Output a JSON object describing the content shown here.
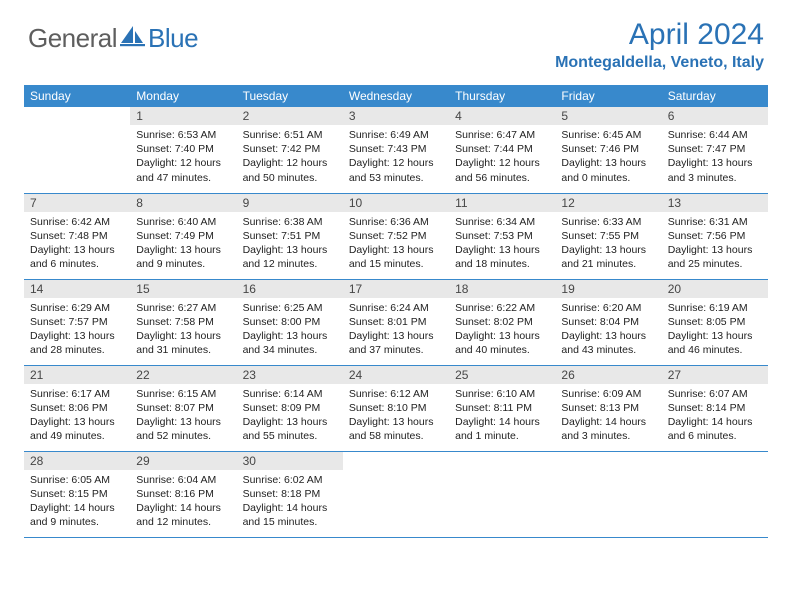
{
  "header": {
    "logo_general": "General",
    "logo_blue": "Blue",
    "month_title": "April 2024",
    "location": "Montegaldella, Veneto, Italy"
  },
  "colors": {
    "header_blue": "#3889cc",
    "text_blue": "#2a72b5",
    "logo_gray": "#5e5e5e",
    "daynum_bg": "#e8e8e8",
    "daynum_text": "#464646",
    "body_text": "#222222"
  },
  "day_headers": [
    "Sunday",
    "Monday",
    "Tuesday",
    "Wednesday",
    "Thursday",
    "Friday",
    "Saturday"
  ],
  "weeks": [
    [
      null,
      {
        "num": "1",
        "sunrise": "Sunrise: 6:53 AM",
        "sunset": "Sunset: 7:40 PM",
        "daylight": "Daylight: 12 hours and 47 minutes."
      },
      {
        "num": "2",
        "sunrise": "Sunrise: 6:51 AM",
        "sunset": "Sunset: 7:42 PM",
        "daylight": "Daylight: 12 hours and 50 minutes."
      },
      {
        "num": "3",
        "sunrise": "Sunrise: 6:49 AM",
        "sunset": "Sunset: 7:43 PM",
        "daylight": "Daylight: 12 hours and 53 minutes."
      },
      {
        "num": "4",
        "sunrise": "Sunrise: 6:47 AM",
        "sunset": "Sunset: 7:44 PM",
        "daylight": "Daylight: 12 hours and 56 minutes."
      },
      {
        "num": "5",
        "sunrise": "Sunrise: 6:45 AM",
        "sunset": "Sunset: 7:46 PM",
        "daylight": "Daylight: 13 hours and 0 minutes."
      },
      {
        "num": "6",
        "sunrise": "Sunrise: 6:44 AM",
        "sunset": "Sunset: 7:47 PM",
        "daylight": "Daylight: 13 hours and 3 minutes."
      }
    ],
    [
      {
        "num": "7",
        "sunrise": "Sunrise: 6:42 AM",
        "sunset": "Sunset: 7:48 PM",
        "daylight": "Daylight: 13 hours and 6 minutes."
      },
      {
        "num": "8",
        "sunrise": "Sunrise: 6:40 AM",
        "sunset": "Sunset: 7:49 PM",
        "daylight": "Daylight: 13 hours and 9 minutes."
      },
      {
        "num": "9",
        "sunrise": "Sunrise: 6:38 AM",
        "sunset": "Sunset: 7:51 PM",
        "daylight": "Daylight: 13 hours and 12 minutes."
      },
      {
        "num": "10",
        "sunrise": "Sunrise: 6:36 AM",
        "sunset": "Sunset: 7:52 PM",
        "daylight": "Daylight: 13 hours and 15 minutes."
      },
      {
        "num": "11",
        "sunrise": "Sunrise: 6:34 AM",
        "sunset": "Sunset: 7:53 PM",
        "daylight": "Daylight: 13 hours and 18 minutes."
      },
      {
        "num": "12",
        "sunrise": "Sunrise: 6:33 AM",
        "sunset": "Sunset: 7:55 PM",
        "daylight": "Daylight: 13 hours and 21 minutes."
      },
      {
        "num": "13",
        "sunrise": "Sunrise: 6:31 AM",
        "sunset": "Sunset: 7:56 PM",
        "daylight": "Daylight: 13 hours and 25 minutes."
      }
    ],
    [
      {
        "num": "14",
        "sunrise": "Sunrise: 6:29 AM",
        "sunset": "Sunset: 7:57 PM",
        "daylight": "Daylight: 13 hours and 28 minutes."
      },
      {
        "num": "15",
        "sunrise": "Sunrise: 6:27 AM",
        "sunset": "Sunset: 7:58 PM",
        "daylight": "Daylight: 13 hours and 31 minutes."
      },
      {
        "num": "16",
        "sunrise": "Sunrise: 6:25 AM",
        "sunset": "Sunset: 8:00 PM",
        "daylight": "Daylight: 13 hours and 34 minutes."
      },
      {
        "num": "17",
        "sunrise": "Sunrise: 6:24 AM",
        "sunset": "Sunset: 8:01 PM",
        "daylight": "Daylight: 13 hours and 37 minutes."
      },
      {
        "num": "18",
        "sunrise": "Sunrise: 6:22 AM",
        "sunset": "Sunset: 8:02 PM",
        "daylight": "Daylight: 13 hours and 40 minutes."
      },
      {
        "num": "19",
        "sunrise": "Sunrise: 6:20 AM",
        "sunset": "Sunset: 8:04 PM",
        "daylight": "Daylight: 13 hours and 43 minutes."
      },
      {
        "num": "20",
        "sunrise": "Sunrise: 6:19 AM",
        "sunset": "Sunset: 8:05 PM",
        "daylight": "Daylight: 13 hours and 46 minutes."
      }
    ],
    [
      {
        "num": "21",
        "sunrise": "Sunrise: 6:17 AM",
        "sunset": "Sunset: 8:06 PM",
        "daylight": "Daylight: 13 hours and 49 minutes."
      },
      {
        "num": "22",
        "sunrise": "Sunrise: 6:15 AM",
        "sunset": "Sunset: 8:07 PM",
        "daylight": "Daylight: 13 hours and 52 minutes."
      },
      {
        "num": "23",
        "sunrise": "Sunrise: 6:14 AM",
        "sunset": "Sunset: 8:09 PM",
        "daylight": "Daylight: 13 hours and 55 minutes."
      },
      {
        "num": "24",
        "sunrise": "Sunrise: 6:12 AM",
        "sunset": "Sunset: 8:10 PM",
        "daylight": "Daylight: 13 hours and 58 minutes."
      },
      {
        "num": "25",
        "sunrise": "Sunrise: 6:10 AM",
        "sunset": "Sunset: 8:11 PM",
        "daylight": "Daylight: 14 hours and 1 minute."
      },
      {
        "num": "26",
        "sunrise": "Sunrise: 6:09 AM",
        "sunset": "Sunset: 8:13 PM",
        "daylight": "Daylight: 14 hours and 3 minutes."
      },
      {
        "num": "27",
        "sunrise": "Sunrise: 6:07 AM",
        "sunset": "Sunset: 8:14 PM",
        "daylight": "Daylight: 14 hours and 6 minutes."
      }
    ],
    [
      {
        "num": "28",
        "sunrise": "Sunrise: 6:05 AM",
        "sunset": "Sunset: 8:15 PM",
        "daylight": "Daylight: 14 hours and 9 minutes."
      },
      {
        "num": "29",
        "sunrise": "Sunrise: 6:04 AM",
        "sunset": "Sunset: 8:16 PM",
        "daylight": "Daylight: 14 hours and 12 minutes."
      },
      {
        "num": "30",
        "sunrise": "Sunrise: 6:02 AM",
        "sunset": "Sunset: 8:18 PM",
        "daylight": "Daylight: 14 hours and 15 minutes."
      },
      null,
      null,
      null,
      null
    ]
  ]
}
